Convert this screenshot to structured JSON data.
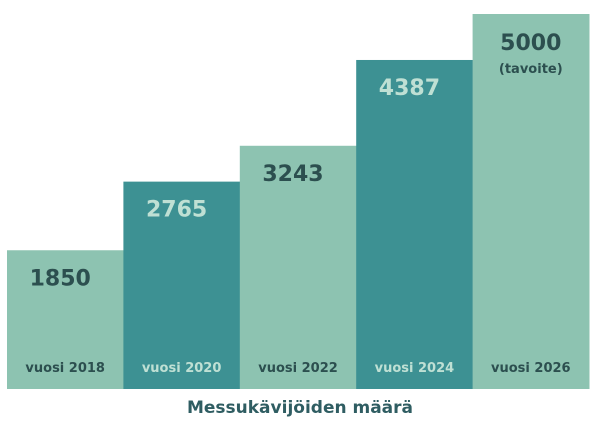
{
  "chart_data": {
    "type": "bar",
    "title": "Messukävijöiden määrä",
    "categories": [
      "vuosi 2018",
      "vuosi 2020",
      "vuosi 2022",
      "vuosi 2024",
      "vuosi 2026"
    ],
    "values": [
      1850,
      2765,
      3243,
      4387,
      5000
    ],
    "value_labels": [
      "1850",
      "2765",
      "3243",
      "4387",
      "5000"
    ],
    "notes": [
      "",
      "",
      "",
      "",
      "(tavoite)"
    ],
    "ylim": [
      0,
      5000
    ],
    "grid": false,
    "legend": "none",
    "colors": {
      "light_bar": "#8dc3b1",
      "dark_bar": "#3d9193",
      "dark_text": "#2c4f4f",
      "light_text": "#bfe0d4",
      "caption": "#2f5d62"
    },
    "bar_styles": [
      "light",
      "dark",
      "light",
      "dark",
      "light"
    ]
  }
}
